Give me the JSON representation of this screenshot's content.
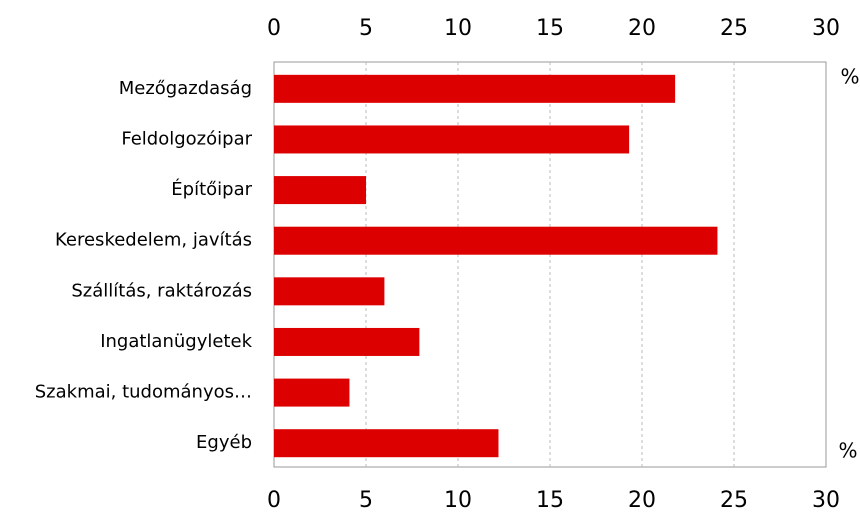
{
  "chart_data": {
    "type": "bar",
    "orientation": "horizontal",
    "categories": [
      "Mezőgazdaság",
      "Feldolgozóipar",
      "Építőipar",
      "Kereskedelem, javítás",
      "Szállítás, raktározás",
      "Ingatlanügyletek",
      "Szakmai, tudományos…",
      "Egyéb"
    ],
    "values": [
      21.8,
      19.3,
      5.0,
      24.1,
      6.0,
      7.9,
      4.1,
      12.2
    ],
    "color": "#dd0000",
    "xlim": [
      0,
      30
    ],
    "xticks": [
      0,
      5,
      10,
      15,
      20,
      25,
      30
    ],
    "unit": "%",
    "grid": true
  }
}
